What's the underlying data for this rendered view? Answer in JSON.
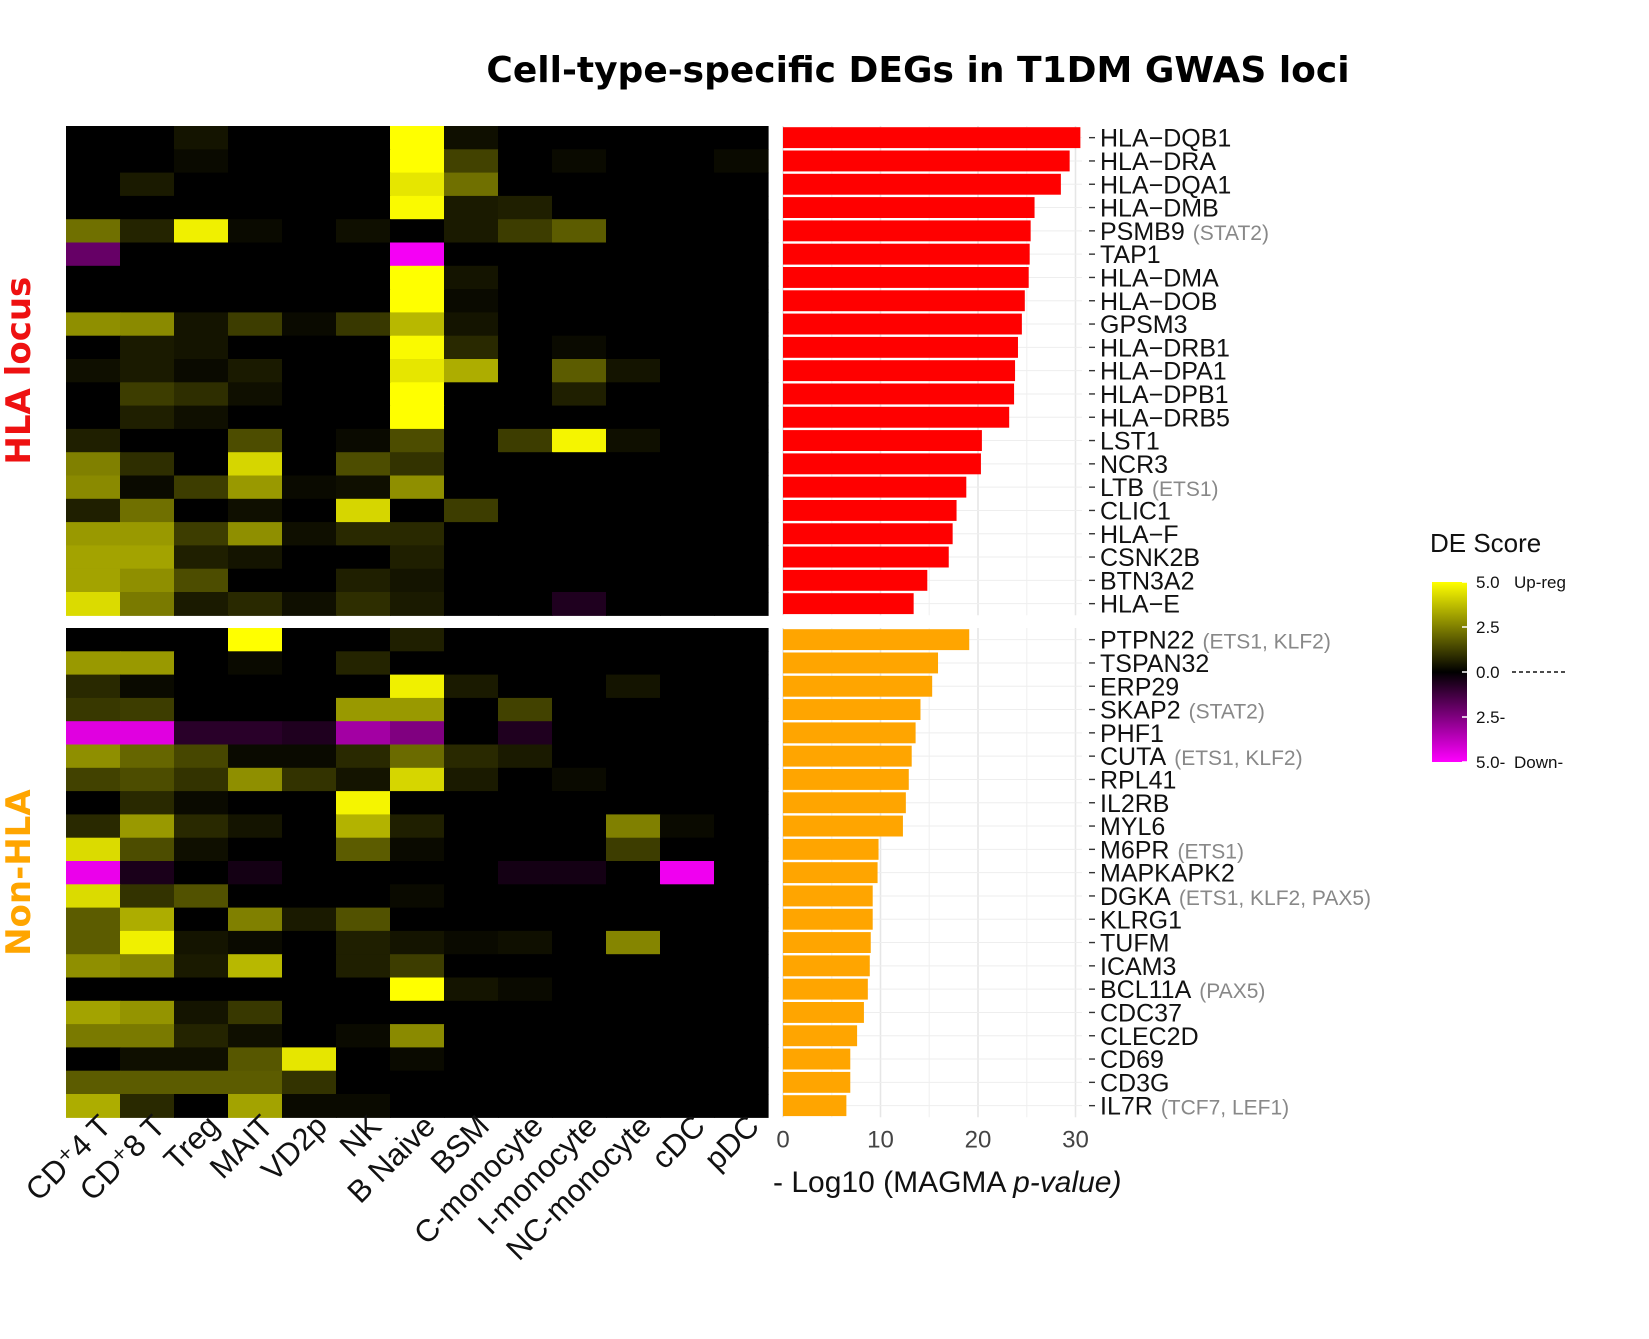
{
  "chart_data": {
    "type": "heatmap",
    "title": "Cell-type-specific DEGs in T1DM GWAS loci",
    "cell_types": [
      "CD⁺4 T",
      "CD⁺8 T",
      "Treg",
      "MAIT",
      "VD2p",
      "NK",
      "B Naive",
      "BSM",
      "C-monocyte",
      "I-monocyte",
      "NC-monocyte",
      "cDC",
      "pDC"
    ],
    "legend": {
      "title": "DE Score",
      "labels": [
        "5.0",
        "2.5",
        "0.0",
        "2.5-",
        "5.0-"
      ],
      "up_label": "Up-reg",
      "down_label": "Down-",
      "colors": {
        "up": "#ffff00",
        "mid": "#000000",
        "down": "#ff00ff"
      }
    },
    "bar_axis": {
      "label_prefix": "- Log10 (MAGMA ",
      "label_italic": "p-value)",
      "ticks": [
        0,
        10,
        20,
        30
      ],
      "xlim": [
        0,
        31.5
      ]
    },
    "panels": [
      {
        "name": "HLA locus",
        "color": "#ee1111",
        "bar_color": "#ff0000",
        "genes": [
          "HLA−DQB1",
          "HLA−DRA",
          "HLA−DQA1",
          "HLA−DMB",
          "PSMB9",
          "TAP1",
          "HLA−DMA",
          "HLA−DOB",
          "GPSM3",
          "HLA−DRB1",
          "HLA−DPA1",
          "HLA−DPB1",
          "HLA−DRB5",
          "LST1",
          "NCR3",
          "LTB",
          "CLIC1",
          "HLA−F",
          "CSNK2B",
          "BTN3A2",
          "HLA−E"
        ],
        "tfs": [
          "",
          "",
          "",
          "",
          "(STAT2)",
          "",
          "",
          "",
          "",
          "",
          "",
          "",
          "",
          "",
          "",
          "(ETS1)",
          "",
          "",
          "",
          "",
          ""
        ],
        "values": [
          30.5,
          29.4,
          28.5,
          25.8,
          25.4,
          25.3,
          25.2,
          24.8,
          24.5,
          24.1,
          23.8,
          23.7,
          23.2,
          20.4,
          20.3,
          18.8,
          17.8,
          17.4,
          17.0,
          14.8,
          13.4
        ],
        "scores": [
          [
            0,
            0,
            0.4,
            0,
            0,
            0,
            5,
            0.3,
            0,
            0,
            0,
            0,
            0
          ],
          [
            0,
            0,
            0.2,
            0,
            0,
            0,
            5,
            1.3,
            0,
            0.2,
            0,
            0,
            0.2
          ],
          [
            0,
            0.5,
            0,
            0,
            0,
            0,
            4.5,
            2.2,
            0,
            0,
            0,
            0,
            0
          ],
          [
            0,
            0,
            0,
            0,
            0,
            0,
            4.9,
            0.5,
            0.6,
            0,
            0,
            0,
            0
          ],
          [
            2.2,
            0.7,
            4.7,
            0.2,
            0,
            0.3,
            0,
            0.5,
            1.2,
            1.8,
            0,
            0,
            0
          ],
          [
            -2.0,
            0,
            0,
            0,
            0,
            0,
            -4.8,
            0,
            0,
            0,
            0,
            0,
            0
          ],
          [
            0,
            0,
            0,
            0,
            0,
            0,
            5,
            0.4,
            0,
            0,
            0,
            0,
            0
          ],
          [
            0,
            0,
            0,
            0,
            0,
            0,
            5,
            0.2,
            0,
            0,
            0,
            0,
            0
          ],
          [
            2.8,
            2.7,
            0.4,
            1.2,
            0.2,
            1.1,
            3.6,
            0.4,
            0,
            0,
            0,
            0,
            0
          ],
          [
            0,
            0.5,
            0.4,
            0,
            0,
            0,
            4.9,
            0.8,
            0,
            0.2,
            0,
            0,
            0
          ],
          [
            0.3,
            0.5,
            0.2,
            0.5,
            0,
            0,
            4.5,
            3.4,
            0,
            1.8,
            0.4,
            0,
            0
          ],
          [
            0,
            1.2,
            0.9,
            0.3,
            0,
            0,
            5,
            0,
            0,
            0.6,
            0,
            0,
            0
          ],
          [
            0,
            0.6,
            0.3,
            0,
            0,
            0,
            5,
            0,
            0,
            0,
            0,
            0,
            0
          ],
          [
            0.6,
            0,
            0,
            1.5,
            0,
            0.2,
            1.5,
            0,
            1.2,
            4.8,
            0.3,
            0,
            0
          ],
          [
            2.5,
            0.9,
            0,
            4.2,
            0,
            1.5,
            1.0,
            0,
            0,
            0,
            0,
            0,
            0
          ],
          [
            2.7,
            0.2,
            1.2,
            3.0,
            0.2,
            0.3,
            2.8,
            0,
            0,
            0,
            0,
            0,
            0
          ],
          [
            0.6,
            2.2,
            0,
            0.3,
            0,
            4.2,
            0,
            1.2,
            0,
            0,
            0,
            0,
            0
          ],
          [
            3.0,
            3.0,
            1.2,
            2.8,
            0.3,
            0.8,
            0.8,
            0,
            0,
            0,
            0,
            0,
            0
          ],
          [
            3.2,
            3.2,
            0.6,
            0.4,
            0,
            0,
            0.6,
            0,
            0,
            0,
            0,
            0,
            0
          ],
          [
            3.2,
            2.8,
            1.5,
            0,
            0,
            0.6,
            0.4,
            0,
            0,
            0,
            0,
            0,
            0
          ],
          [
            4.3,
            2.4,
            0.5,
            0.8,
            0.3,
            0.9,
            0.5,
            0,
            0,
            -0.6,
            0,
            0,
            0
          ]
        ]
      },
      {
        "name": "Non-HLA",
        "color": "#ffa500",
        "bar_color": "#ffa500",
        "genes": [
          "PTPN22",
          "TSPAN32",
          "ERP29",
          "SKAP2",
          "PHF1",
          "CUTA",
          "RPL41",
          "IL2RB",
          "MYL6",
          "M6PR",
          "MAPKAPK2",
          "DGKA",
          "KLRG1",
          "TUFM",
          "ICAM3",
          "BCL11A",
          "CDC37",
          "CLEC2D",
          "CD69",
          "CD3G",
          "IL7R"
        ],
        "tfs": [
          "(ETS1, KLF2)",
          "",
          "",
          "(STAT2)",
          "",
          "(ETS1, KLF2)",
          "",
          "",
          "",
          "(ETS1)",
          "",
          "(ETS1, KLF2, PAX5)",
          "",
          "",
          "",
          "(PAX5)",
          "",
          "",
          "",
          "",
          "(TCF7, LEF1)"
        ],
        "values": [
          19.1,
          15.9,
          15.3,
          14.1,
          13.6,
          13.2,
          12.9,
          12.6,
          12.3,
          9.8,
          9.7,
          9.2,
          9.2,
          9.0,
          8.9,
          8.7,
          8.3,
          7.6,
          6.9,
          6.9,
          6.5
        ],
        "scores": [
          [
            0,
            0,
            0,
            5,
            0,
            0,
            0.6,
            0,
            0,
            0,
            0,
            0,
            0
          ],
          [
            3.0,
            3.0,
            0,
            0.2,
            0,
            0.7,
            0,
            0,
            0,
            0,
            0,
            0,
            0
          ],
          [
            0.8,
            0.2,
            0,
            0,
            0,
            0,
            4.7,
            0.5,
            0,
            0,
            0.4,
            0,
            0
          ],
          [
            1.1,
            1.2,
            0,
            0,
            0,
            3.0,
            3.0,
            0,
            1.3,
            0,
            0,
            0,
            0
          ],
          [
            -4.4,
            -4.4,
            -0.8,
            -0.8,
            -0.6,
            -3.2,
            -2.5,
            0,
            -0.6,
            0,
            0,
            0,
            0
          ],
          [
            2.8,
            2.0,
            1.4,
            0.2,
            0.2,
            0.8,
            2.1,
            0.8,
            0.5,
            0,
            0,
            0,
            0
          ],
          [
            1.3,
            1.5,
            1.0,
            2.8,
            1.0,
            0.4,
            4.2,
            0.5,
            0,
            0.2,
            0,
            0,
            0
          ],
          [
            0,
            0.8,
            0.2,
            0,
            0,
            4.8,
            0,
            0,
            0,
            0,
            0,
            0,
            0
          ],
          [
            0.8,
            3.0,
            0.8,
            0.4,
            0,
            3.5,
            0.6,
            0,
            0,
            0,
            2.5,
            0.2,
            0
          ],
          [
            4.3,
            1.5,
            0.3,
            0,
            0,
            1.8,
            0.2,
            0,
            0,
            0,
            1.2,
            0,
            0
          ],
          [
            -4.6,
            -0.5,
            0,
            -0.4,
            0,
            0,
            0,
            0,
            -0.4,
            -0.4,
            0,
            -4.7,
            0
          ],
          [
            4.3,
            1.0,
            1.6,
            0,
            0,
            0,
            0.2,
            0,
            0,
            0,
            0,
            0,
            0
          ],
          [
            1.8,
            3.4,
            0,
            2.5,
            0.5,
            1.6,
            0,
            0,
            0,
            0,
            0,
            0,
            0
          ],
          [
            1.8,
            4.7,
            0.4,
            0.2,
            0,
            0.6,
            0.4,
            0.2,
            0.3,
            0,
            2.6,
            0,
            0
          ],
          [
            2.8,
            2.6,
            0.5,
            3.6,
            0,
            0.6,
            1.2,
            0,
            0,
            0,
            0,
            0,
            0
          ],
          [
            0,
            0,
            0,
            0,
            0,
            0,
            5,
            0.4,
            0.2,
            0,
            0,
            0,
            0
          ],
          [
            3.2,
            2.9,
            0.4,
            1.1,
            0,
            0,
            0,
            0,
            0,
            0,
            0,
            0,
            0
          ],
          [
            2.4,
            2.4,
            0.7,
            0.3,
            0,
            0.2,
            2.7,
            0,
            0,
            0,
            0,
            0,
            0
          ],
          [
            0,
            0.3,
            0.3,
            1.7,
            4.5,
            0,
            0.2,
            0,
            0,
            0,
            0,
            0,
            0
          ],
          [
            1.8,
            1.8,
            1.8,
            1.8,
            1.0,
            0,
            0,
            0,
            0,
            0,
            0,
            0,
            0
          ],
          [
            3.4,
            0.8,
            0,
            3.2,
            0.2,
            0.2,
            0,
            0,
            0,
            0,
            0,
            0,
            0
          ]
        ]
      }
    ]
  }
}
